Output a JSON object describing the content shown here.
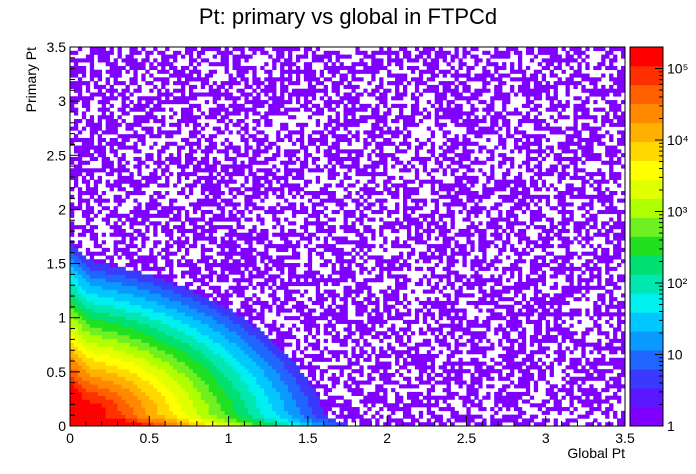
{
  "chart_data": {
    "type": "heatmap",
    "title": "Pt: primary vs global in FTPCd",
    "xlabel": "Global Pt",
    "ylabel": "Primary Pt",
    "xlim": [
      0,
      3.5
    ],
    "ylim": [
      0,
      3.5
    ],
    "x_ticks": [
      "0",
      "0.5",
      "1",
      "1.5",
      "2",
      "2.5",
      "3",
      "3.5"
    ],
    "y_ticks": [
      "0",
      "0.5",
      "1",
      "1.5",
      "2",
      "2.5",
      "3",
      "3.5"
    ],
    "color_scale": "log",
    "zlim": [
      1,
      200000
    ],
    "z_ticks": [
      "1",
      "10",
      "10²",
      "10³",
      "10⁴",
      "10⁵"
    ],
    "peak": {
      "x": 0.15,
      "y": 0.15
    },
    "palette": [
      "#7f00ff",
      "#5a16ff",
      "#3a3aff",
      "#1f66ff",
      "#0a99ff",
      "#00c8ff",
      "#00f0f0",
      "#00e8b0",
      "#00e070",
      "#20e020",
      "#70f020",
      "#b0ff00",
      "#e0ff00",
      "#ffff00",
      "#ffd800",
      "#ffb000",
      "#ff8a00",
      "#ff6000",
      "#ff3000",
      "#ff0000"
    ]
  }
}
